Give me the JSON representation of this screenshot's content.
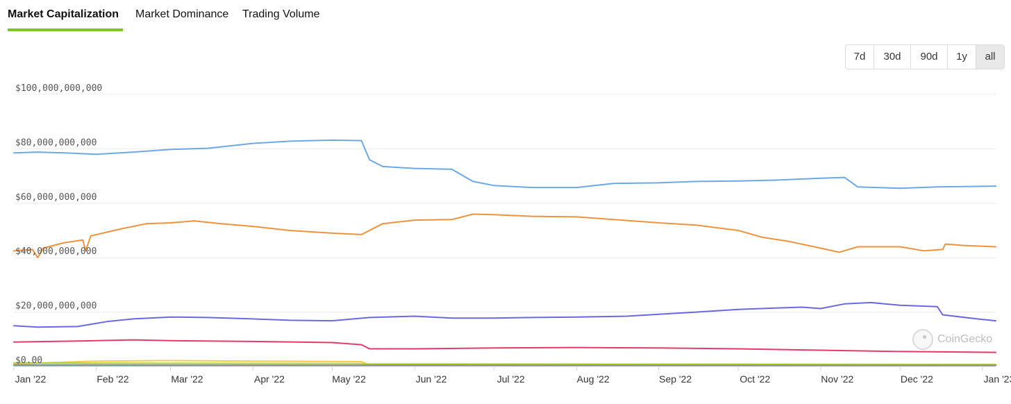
{
  "tabs": [
    {
      "label": "Market Capitalization",
      "active": true
    },
    {
      "label": "Market Dominance",
      "active": false
    },
    {
      "label": "Trading Volume",
      "active": false
    }
  ],
  "accent_color": "#7bc62d",
  "range_buttons": [
    {
      "label": "7d",
      "selected": false
    },
    {
      "label": "30d",
      "selected": false
    },
    {
      "label": "90d",
      "selected": false
    },
    {
      "label": "1y",
      "selected": false
    },
    {
      "label": "all",
      "selected": true
    }
  ],
  "watermark": {
    "text": "CoinGecko",
    "icon": "coingecko-logo-icon"
  },
  "chart_data": {
    "type": "line",
    "y_tick_labels": [
      "$0.00",
      "$20,000,000,000",
      "$40,000,000,000",
      "$60,000,000,000",
      "$80,000,000,000",
      "$100,000,000,000"
    ],
    "y_ticks": [
      0,
      20,
      40,
      60,
      80,
      100
    ],
    "y_unit": "billion USD",
    "ylim": [
      0,
      100
    ],
    "x_tick_labels": [
      "Jan '22",
      "Feb '22",
      "Mar '22",
      "Apr '22",
      "May '22",
      "Jun '22",
      "Jul '22",
      "Aug '22",
      "Sep '22",
      "Oct '22",
      "Nov '22",
      "Dec '22",
      "Jan '23"
    ],
    "x_ticks": [
      "2022-01-01",
      "2022-02-01",
      "2022-03-01",
      "2022-04-01",
      "2022-05-01",
      "2022-06-01",
      "2022-07-01",
      "2022-08-01",
      "2022-09-01",
      "2022-10-01",
      "2022-11-01",
      "2022-12-01",
      "2023-01-01"
    ],
    "xlim": [
      "2022-01-01",
      "2023-01-06"
    ],
    "grid": true,
    "legend": "none",
    "series": [
      {
        "color": "#6aa8e6",
        "points": [
          [
            "2022-01-01",
            78.5
          ],
          [
            "2022-01-10",
            78.8
          ],
          [
            "2022-01-20",
            78.5
          ],
          [
            "2022-02-01",
            78.0
          ],
          [
            "2022-02-15",
            78.8
          ],
          [
            "2022-03-01",
            79.8
          ],
          [
            "2022-03-15",
            80.2
          ],
          [
            "2022-04-01",
            82.0
          ],
          [
            "2022-04-15",
            82.8
          ],
          [
            "2022-05-01",
            83.2
          ],
          [
            "2022-05-12",
            83.0
          ],
          [
            "2022-05-15",
            76.0
          ],
          [
            "2022-05-20",
            73.5
          ],
          [
            "2022-06-01",
            72.8
          ],
          [
            "2022-06-15",
            72.5
          ],
          [
            "2022-06-23",
            68.0
          ],
          [
            "2022-07-01",
            66.5
          ],
          [
            "2022-07-15",
            65.8
          ],
          [
            "2022-08-01",
            65.8
          ],
          [
            "2022-08-15",
            67.3
          ],
          [
            "2022-09-01",
            67.5
          ],
          [
            "2022-09-15",
            68.0
          ],
          [
            "2022-10-01",
            68.2
          ],
          [
            "2022-10-15",
            68.5
          ],
          [
            "2022-11-01",
            69.2
          ],
          [
            "2022-11-10",
            69.5
          ],
          [
            "2022-11-15",
            66.0
          ],
          [
            "2022-12-01",
            65.5
          ],
          [
            "2022-12-15",
            66.0
          ],
          [
            "2023-01-06",
            66.3
          ]
        ]
      },
      {
        "color": "#f0923c",
        "points": [
          [
            "2022-01-01",
            42.5
          ],
          [
            "2022-01-08",
            43.0
          ],
          [
            "2022-01-10",
            40.0
          ],
          [
            "2022-01-12",
            43.5
          ],
          [
            "2022-01-20",
            45.5
          ],
          [
            "2022-01-27",
            46.5
          ],
          [
            "2022-01-28",
            42.5
          ],
          [
            "2022-01-30",
            48.0
          ],
          [
            "2022-02-10",
            50.5
          ],
          [
            "2022-02-20",
            52.5
          ],
          [
            "2022-03-01",
            52.8
          ],
          [
            "2022-03-10",
            53.5
          ],
          [
            "2022-03-20",
            52.5
          ],
          [
            "2022-04-01",
            51.5
          ],
          [
            "2022-04-15",
            50.0
          ],
          [
            "2022-05-01",
            49.0
          ],
          [
            "2022-05-12",
            48.5
          ],
          [
            "2022-05-20",
            52.5
          ],
          [
            "2022-06-01",
            53.8
          ],
          [
            "2022-06-15",
            54.0
          ],
          [
            "2022-06-23",
            56.0
          ],
          [
            "2022-07-01",
            55.8
          ],
          [
            "2022-07-15",
            55.2
          ],
          [
            "2022-08-01",
            55.0
          ],
          [
            "2022-08-15",
            54.0
          ],
          [
            "2022-09-01",
            52.8
          ],
          [
            "2022-09-15",
            52.0
          ],
          [
            "2022-10-01",
            50.0
          ],
          [
            "2022-10-10",
            47.5
          ],
          [
            "2022-10-20",
            46.0
          ],
          [
            "2022-11-01",
            43.5
          ],
          [
            "2022-11-08",
            42.0
          ],
          [
            "2022-11-15",
            44.0
          ],
          [
            "2022-12-01",
            44.0
          ],
          [
            "2022-12-10",
            42.5
          ],
          [
            "2022-12-17",
            43.0
          ],
          [
            "2022-12-18",
            45.0
          ],
          [
            "2022-12-25",
            44.5
          ],
          [
            "2023-01-06",
            44.0
          ]
        ]
      },
      {
        "color": "#6a67e0",
        "points": [
          [
            "2022-01-01",
            15.0
          ],
          [
            "2022-01-10",
            14.5
          ],
          [
            "2022-01-25",
            14.7
          ],
          [
            "2022-02-05",
            16.5
          ],
          [
            "2022-02-15",
            17.5
          ],
          [
            "2022-03-01",
            18.2
          ],
          [
            "2022-03-15",
            18.0
          ],
          [
            "2022-04-01",
            17.5
          ],
          [
            "2022-04-15",
            17.0
          ],
          [
            "2022-05-01",
            16.8
          ],
          [
            "2022-05-15",
            18.0
          ],
          [
            "2022-06-01",
            18.5
          ],
          [
            "2022-06-15",
            17.8
          ],
          [
            "2022-07-01",
            17.8
          ],
          [
            "2022-07-15",
            18.0
          ],
          [
            "2022-08-01",
            18.2
          ],
          [
            "2022-08-20",
            18.5
          ],
          [
            "2022-09-01",
            19.2
          ],
          [
            "2022-09-15",
            20.0
          ],
          [
            "2022-10-01",
            21.0
          ],
          [
            "2022-10-15",
            21.5
          ],
          [
            "2022-10-25",
            21.8
          ],
          [
            "2022-11-01",
            21.3
          ],
          [
            "2022-11-10",
            23.0
          ],
          [
            "2022-11-20",
            23.5
          ],
          [
            "2022-12-01",
            22.5
          ],
          [
            "2022-12-15",
            22.0
          ],
          [
            "2022-12-17",
            19.0
          ],
          [
            "2022-12-30",
            17.5
          ],
          [
            "2023-01-06",
            16.8
          ]
        ]
      },
      {
        "color": "#e6396a",
        "points": [
          [
            "2022-01-01",
            9.0
          ],
          [
            "2022-01-15",
            9.2
          ],
          [
            "2022-02-01",
            9.5
          ],
          [
            "2022-02-15",
            9.8
          ],
          [
            "2022-03-01",
            9.5
          ],
          [
            "2022-04-01",
            9.2
          ],
          [
            "2022-05-01",
            8.8
          ],
          [
            "2022-05-12",
            8.0
          ],
          [
            "2022-05-15",
            6.5
          ],
          [
            "2022-06-01",
            6.5
          ],
          [
            "2022-07-01",
            6.8
          ],
          [
            "2022-08-01",
            7.0
          ],
          [
            "2022-09-01",
            6.8
          ],
          [
            "2022-10-01",
            6.5
          ],
          [
            "2022-11-01",
            6.0
          ],
          [
            "2022-12-01",
            5.5
          ],
          [
            "2023-01-06",
            5.2
          ]
        ]
      },
      {
        "color": "#f2c94c",
        "points": [
          [
            "2022-01-01",
            1.0
          ],
          [
            "2022-02-01",
            2.0
          ],
          [
            "2022-03-01",
            2.2
          ],
          [
            "2022-04-01",
            2.0
          ],
          [
            "2022-05-12",
            1.8
          ],
          [
            "2022-05-15",
            0.5
          ],
          [
            "2022-07-01",
            0.5
          ],
          [
            "2023-01-06",
            0.5
          ]
        ]
      },
      {
        "color": "#b5d334",
        "points": [
          [
            "2022-01-01",
            1.3
          ],
          [
            "2022-05-12",
            1.1
          ],
          [
            "2022-05-15",
            1.0
          ],
          [
            "2022-09-01",
            0.9
          ],
          [
            "2023-01-06",
            0.8
          ]
        ]
      },
      {
        "color": "#57b39a",
        "points": [
          [
            "2022-01-01",
            0.4
          ],
          [
            "2022-06-01",
            0.4
          ],
          [
            "2023-01-06",
            0.4
          ]
        ]
      },
      {
        "color": "#8c8c8c",
        "points": [
          [
            "2022-01-01",
            0.6
          ],
          [
            "2022-06-01",
            0.5
          ],
          [
            "2023-01-06",
            0.4
          ]
        ]
      }
    ]
  }
}
